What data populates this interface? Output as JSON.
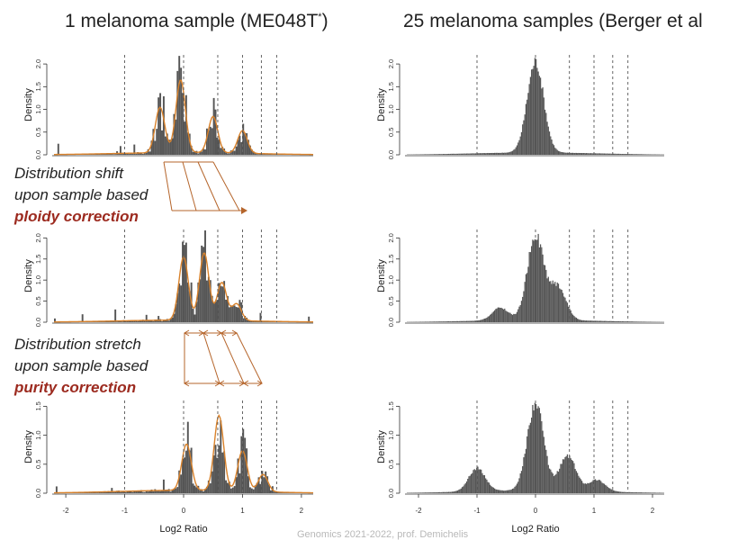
{
  "titles": {
    "left": "1 melanoma sample (ME048T",
    "left_sup": "*",
    "left_close": ")",
    "right": "25 melanoma samples (Berger et al"
  },
  "notes": {
    "ploidy": {
      "line1": "Distribution shift",
      "line2": "upon sample based",
      "emph": "ploidy correction"
    },
    "purity": {
      "line1": "Distribution stretch",
      "line2": "upon sample based",
      "emph": "purity correction"
    }
  },
  "footer": "Genomics 2021-2022, prof. Demichelis",
  "colors": {
    "bars": "#555555",
    "curve": "#d9822b",
    "arrow": "#b5652b",
    "emph_text": "#9c2a1f",
    "guides": "#555555"
  },
  "chart_data": [
    {
      "type": "bar",
      "panel": "1 sample, raw",
      "ylabel": "Density",
      "xlim": [
        -2.2,
        2.2
      ],
      "ylim": [
        0,
        2.2
      ],
      "yticks": [
        "0.0",
        "0.5",
        "1.0",
        "1.5",
        "2.0"
      ],
      "xticks": [],
      "guides": [
        -1,
        0,
        0.58,
        1,
        1.32,
        1.58
      ],
      "peaks": [
        {
          "x": -0.4,
          "h": 1.0
        },
        {
          "x": -0.05,
          "h": 1.6
        },
        {
          "x": 0.5,
          "h": 0.8
        },
        {
          "x": 1.0,
          "h": 0.5
        }
      ],
      "bins": 150,
      "smooth": false,
      "density_curve": true
    },
    {
      "type": "bar",
      "panel": "25 samples, raw",
      "ylabel": "Density",
      "xlim": [
        -2.2,
        2.2
      ],
      "ylim": [
        0,
        2.2
      ],
      "yticks": [
        "0.0",
        "0.5",
        "1.0",
        "1.5",
        "2.0"
      ],
      "xticks": [],
      "guides": [
        -1,
        0,
        0.58,
        1,
        1.32,
        1.58
      ],
      "peaks": [
        {
          "x": 0.0,
          "h": 2.0
        }
      ],
      "bins": 230,
      "smooth": true,
      "density_curve": false
    },
    {
      "type": "bar",
      "panel": "1 sample, ploidy corrected",
      "ylabel": "Density",
      "xlim": [
        -2.2,
        2.2
      ],
      "ylim": [
        0,
        2.2
      ],
      "yticks": [
        "0.0",
        "0.5",
        "1.0",
        "1.5",
        "2.0"
      ],
      "xticks": [],
      "guides": [
        -1,
        0,
        0.58,
        1,
        1.32,
        1.58
      ],
      "peaks": [
        {
          "x": 0.0,
          "h": 1.5
        },
        {
          "x": 0.35,
          "h": 1.6
        },
        {
          "x": 0.65,
          "h": 0.9
        },
        {
          "x": 0.9,
          "h": 0.4
        }
      ],
      "bins": 150,
      "smooth": false,
      "density_curve": true
    },
    {
      "type": "bar",
      "panel": "25 samples, ploidy corrected",
      "ylabel": "Density",
      "xlim": [
        -2.2,
        2.2
      ],
      "ylim": [
        0,
        2.2
      ],
      "yticks": [
        "0.0",
        "0.5",
        "1.0",
        "1.5",
        "2.0"
      ],
      "xticks": [],
      "guides": [
        -1,
        0,
        0.58,
        1,
        1.32,
        1.58
      ],
      "peaks": [
        {
          "x": -0.6,
          "h": 0.3
        },
        {
          "x": 0.0,
          "h": 2.0
        },
        {
          "x": 0.38,
          "h": 0.8
        }
      ],
      "bins": 230,
      "smooth": true,
      "density_curve": false
    },
    {
      "type": "bar",
      "panel": "1 sample, purity corrected",
      "xlabel": "Log2 Ratio",
      "ylabel": "Density",
      "xlim": [
        -2.2,
        2.2
      ],
      "ylim": [
        0,
        1.6
      ],
      "yticks": [
        "0.0",
        "0.5",
        "1.0",
        "1.5"
      ],
      "xticks": [
        "-2",
        "-1",
        "0",
        "1",
        "2"
      ],
      "guides": [
        -1,
        0,
        0.58,
        1,
        1.32,
        1.58
      ],
      "peaks": [
        {
          "x": 0.05,
          "h": 0.8
        },
        {
          "x": 0.6,
          "h": 1.3
        },
        {
          "x": 1.0,
          "h": 0.7
        },
        {
          "x": 1.35,
          "h": 0.3
        }
      ],
      "bins": 150,
      "smooth": false,
      "density_curve": true
    },
    {
      "type": "bar",
      "panel": "25 samples, purity corrected",
      "xlabel": "Log2 Ratio",
      "ylabel": "Density",
      "xlim": [
        -2.2,
        2.2
      ],
      "ylim": [
        0,
        1.6
      ],
      "yticks": [
        "0.0",
        "0.5",
        "1.0",
        "1.5"
      ],
      "xticks": [
        "-2",
        "-1",
        "0",
        "1",
        "2"
      ],
      "guides": [
        -1,
        0,
        0.58,
        1,
        1.32,
        1.58
      ],
      "peaks": [
        {
          "x": -1.0,
          "h": 0.4
        },
        {
          "x": 0.0,
          "h": 1.5
        },
        {
          "x": 0.55,
          "h": 0.6
        },
        {
          "x": 1.05,
          "h": 0.2
        }
      ],
      "bins": 230,
      "smooth": true,
      "density_curve": false
    }
  ]
}
